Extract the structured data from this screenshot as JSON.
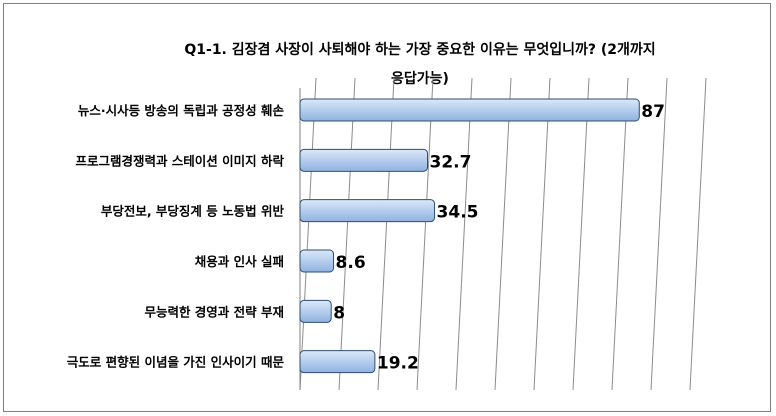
{
  "chart_data": {
    "type": "bar",
    "orientation": "horizontal",
    "title": "Q1-1. 김장겸 사장이 사퇴해야 하는 가장 중요한 이유는 무엇입니까? (2개까지 응답가능)",
    "categories": [
      "뉴스·시사등 방송의 독립과 공정성 훼손",
      "프로그램경쟁력과 스테이션 이미지 하락",
      "부당전보, 부당징계 등 노동법 위반",
      "채용과 인사 실패",
      "무능력한 경영과 전략 부재",
      "극도로 편향된 이념을 가진 인사이기 때문"
    ],
    "values": [
      87,
      32.7,
      34.5,
      8.6,
      8,
      19.2
    ],
    "value_labels": [
      "87",
      "32.7",
      "34.5",
      "8.6",
      "8",
      "19.2"
    ],
    "xlim": [
      0,
      100
    ],
    "grid": true,
    "bar_color": "#a9c6ea",
    "bar_edge_color": "#2f4e6e"
  }
}
